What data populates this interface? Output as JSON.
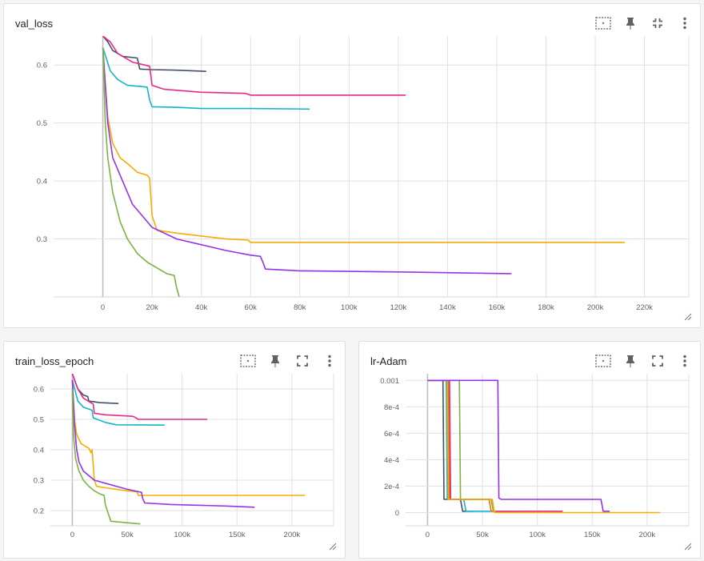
{
  "cards": {
    "val_loss": {
      "title": "val_loss"
    },
    "train_loss_epoch": {
      "title": "train_loss_epoch"
    },
    "lr_adam": {
      "title": "lr-Adam"
    }
  },
  "icons": {
    "fit": "fit-domain-icon",
    "pin": "pin-icon",
    "collapse": "collapse-icon",
    "expand": "expand-icon",
    "more": "more-vert-icon"
  },
  "colors": {
    "dark": "#425066",
    "pink": "#e7298a",
    "cyan": "#12b5cb",
    "orange": "#f9ab00",
    "purple": "#9334e6",
    "green": "#7cb342",
    "red": "#e8710a"
  },
  "chart_data": [
    {
      "type": "line",
      "title": "val_loss",
      "xlim": [
        -20000,
        238000
      ],
      "ylim": [
        0.2,
        0.65
      ],
      "x_ticks": [
        "0",
        "20k",
        "40k",
        "60k",
        "80k",
        "100k",
        "120k",
        "140k",
        "160k",
        "180k",
        "200k",
        "220k"
      ],
      "y_ticks": [
        "0.6",
        "0.5",
        "0.4",
        "0.3"
      ],
      "series": [
        {
          "color": "#425066",
          "x": [
            0,
            2000,
            4000,
            8000,
            14000,
            15000,
            20000,
            30000,
            42000
          ],
          "y": [
            0.65,
            0.64,
            0.625,
            0.615,
            0.612,
            0.593,
            0.592,
            0.591,
            0.589
          ]
        },
        {
          "color": "#e7298a",
          "x": [
            0,
            3000,
            6000,
            12000,
            19000,
            20000,
            25000,
            40000,
            58000,
            60000,
            90000,
            123000
          ],
          "y": [
            0.65,
            0.64,
            0.62,
            0.605,
            0.598,
            0.565,
            0.558,
            0.553,
            0.551,
            0.548,
            0.548,
            0.548
          ]
        },
        {
          "color": "#12b5cb",
          "x": [
            0,
            3000,
            6000,
            10000,
            18000,
            19000,
            20000,
            30000,
            40000,
            60000,
            84000
          ],
          "y": [
            0.63,
            0.59,
            0.575,
            0.565,
            0.562,
            0.54,
            0.528,
            0.527,
            0.525,
            0.525,
            0.524
          ]
        },
        {
          "color": "#f9ab00",
          "x": [
            0,
            1000,
            2000,
            4000,
            7000,
            10000,
            14000,
            18000,
            19000,
            20000,
            22000,
            30000,
            40000,
            50000,
            59000,
            60000,
            100000,
            150000,
            212000
          ],
          "y": [
            0.63,
            0.57,
            0.51,
            0.465,
            0.44,
            0.43,
            0.415,
            0.41,
            0.405,
            0.34,
            0.315,
            0.31,
            0.305,
            0.3,
            0.298,
            0.294,
            0.294,
            0.294,
            0.294
          ]
        },
        {
          "color": "#9334e6",
          "x": [
            0,
            2000,
            4000,
            8000,
            12000,
            20000,
            30000,
            40000,
            50000,
            60000,
            64000,
            65000,
            66000,
            80000,
            120000,
            166000
          ],
          "y": [
            0.63,
            0.5,
            0.44,
            0.4,
            0.36,
            0.32,
            0.3,
            0.29,
            0.28,
            0.272,
            0.27,
            0.26,
            0.248,
            0.245,
            0.243,
            0.24
          ]
        },
        {
          "color": "#7cb342",
          "x": [
            0,
            1000,
            2000,
            4000,
            7000,
            10000,
            14000,
            18000,
            22000,
            26000,
            29000,
            30000,
            31000
          ],
          "y": [
            0.63,
            0.5,
            0.44,
            0.38,
            0.33,
            0.3,
            0.275,
            0.26,
            0.25,
            0.24,
            0.237,
            0.215,
            0.2
          ]
        }
      ]
    },
    {
      "type": "line",
      "title": "train_loss_epoch",
      "xlim": [
        -20000,
        238000
      ],
      "ylim": [
        0.15,
        0.65
      ],
      "x_ticks": [
        "0",
        "50k",
        "100k",
        "150k",
        "200k"
      ],
      "y_ticks": [
        "0.6",
        "0.5",
        "0.4",
        "0.3",
        "0.2"
      ],
      "series": [
        {
          "color": "#425066",
          "x": [
            0,
            5000,
            10000,
            14000,
            15000,
            25000,
            42000
          ],
          "y": [
            0.65,
            0.6,
            0.58,
            0.575,
            0.56,
            0.555,
            0.552
          ]
        },
        {
          "color": "#e7298a",
          "x": [
            0,
            5000,
            10000,
            19000,
            20000,
            30000,
            55000,
            58000,
            60000,
            123000
          ],
          "y": [
            0.65,
            0.6,
            0.57,
            0.55,
            0.52,
            0.515,
            0.51,
            0.505,
            0.5,
            0.5
          ]
        },
        {
          "color": "#12b5cb",
          "x": [
            0,
            5000,
            10000,
            18000,
            19000,
            30000,
            40000,
            84000
          ],
          "y": [
            0.63,
            0.56,
            0.54,
            0.53,
            0.505,
            0.49,
            0.482,
            0.481
          ]
        },
        {
          "color": "#f9ab00",
          "x": [
            0,
            2000,
            4000,
            8000,
            15000,
            17000,
            18000,
            20000,
            22000,
            30000,
            50000,
            59000,
            60000,
            120000,
            212000
          ],
          "y": [
            0.63,
            0.5,
            0.45,
            0.42,
            0.405,
            0.39,
            0.4,
            0.3,
            0.28,
            0.275,
            0.265,
            0.262,
            0.25,
            0.25,
            0.25
          ]
        },
        {
          "color": "#9334e6",
          "x": [
            0,
            2000,
            4000,
            6000,
            10000,
            20000,
            30000,
            40000,
            50000,
            63000,
            64000,
            66000,
            90000,
            140000,
            166000
          ],
          "y": [
            0.63,
            0.48,
            0.4,
            0.36,
            0.33,
            0.3,
            0.29,
            0.28,
            0.27,
            0.26,
            0.24,
            0.225,
            0.22,
            0.215,
            0.211
          ]
        },
        {
          "color": "#7cb342",
          "x": [
            0,
            1000,
            3000,
            6000,
            10000,
            15000,
            20000,
            25000,
            29000,
            30000,
            35000,
            50000,
            62000
          ],
          "y": [
            0.6,
            0.45,
            0.37,
            0.33,
            0.3,
            0.28,
            0.265,
            0.255,
            0.25,
            0.22,
            0.165,
            0.16,
            0.156
          ]
        }
      ]
    },
    {
      "type": "line",
      "title": "lr-Adam",
      "xlim": [
        -20000,
        238000
      ],
      "ylim": [
        -0.0001,
        0.00105
      ],
      "x_ticks": [
        "0",
        "50k",
        "100k",
        "150k",
        "200k"
      ],
      "y_ticks": [
        "0.001",
        "8e-4",
        "6e-4",
        "4e-4",
        "2e-4",
        "0"
      ],
      "series": [
        {
          "color": "#425066",
          "x": [
            0,
            14000,
            15000,
            17000,
            30000,
            32000,
            42000
          ],
          "y": [
            0.001,
            0.001,
            0.0001,
            0.0001,
            0.0001,
            1e-05,
            1e-05
          ]
        },
        {
          "color": "#12b5cb",
          "x": [
            0,
            17000,
            18000,
            20000,
            33000,
            35000,
            84000
          ],
          "y": [
            0.001,
            0.001,
            0.0001,
            0.0001,
            0.0001,
            1e-05,
            1e-05
          ]
        },
        {
          "color": "#e8710a",
          "x": [
            0,
            19000,
            20000,
            22000,
            56000,
            58000,
            123000
          ],
          "y": [
            0.001,
            0.001,
            0.0001,
            0.0001,
            0.0001,
            1e-05,
            1e-05
          ]
        },
        {
          "color": "#e7298a",
          "x": [
            0,
            20000,
            21000,
            23000,
            58000,
            60000,
            123000
          ],
          "y": [
            0.001,
            0.001,
            0.0001,
            0.0001,
            0.0001,
            1e-05,
            1e-05
          ]
        },
        {
          "color": "#7cb342",
          "x": [
            0,
            29000,
            30000,
            32000,
            58000,
            60000,
            62000
          ],
          "y": [
            0.001,
            0.001,
            0.0001,
            0.0001,
            0.0001,
            1e-05,
            1e-05
          ]
        },
        {
          "color": "#f9ab00",
          "x": [
            0,
            18000,
            19000,
            21000,
            59000,
            61000,
            212000
          ],
          "y": [
            0.001,
            0.001,
            0.0001,
            0.0001,
            0.0001,
            0,
            0
          ]
        },
        {
          "color": "#9334e6",
          "x": [
            0,
            64000,
            65000,
            67000,
            158000,
            160000,
            166000
          ],
          "y": [
            0.001,
            0.001,
            0.00011,
            0.0001,
            0.0001,
            1e-05,
            1e-05
          ]
        }
      ]
    }
  ]
}
